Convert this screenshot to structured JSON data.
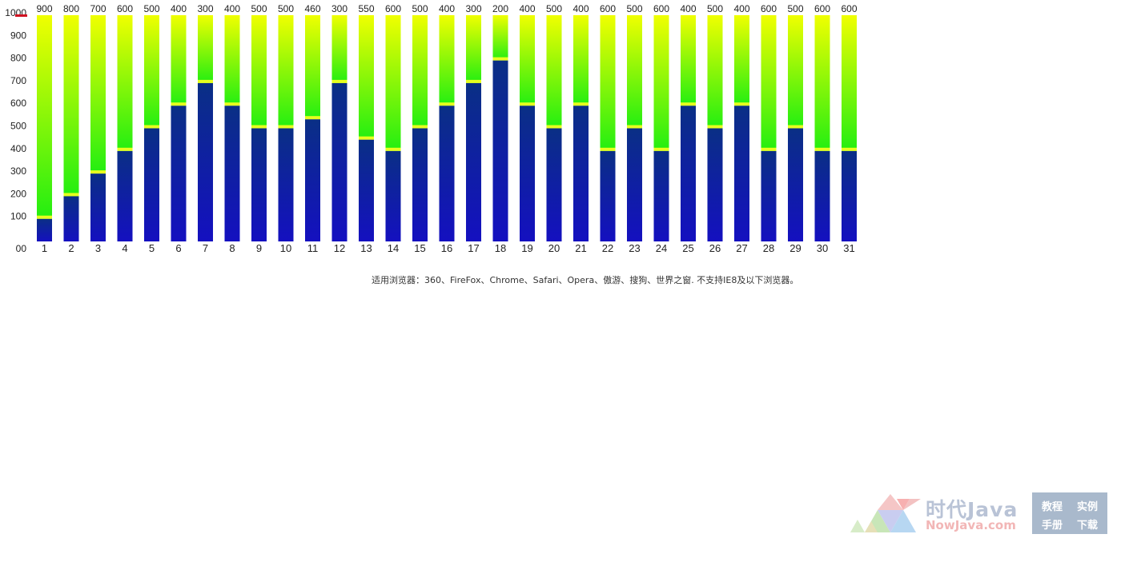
{
  "chart_data": {
    "type": "bar",
    "stacked": true,
    "categories": [
      "1",
      "2",
      "3",
      "4",
      "5",
      "6",
      "7",
      "8",
      "9",
      "10",
      "11",
      "12",
      "13",
      "14",
      "15",
      "16",
      "17",
      "18",
      "19",
      "20",
      "21",
      "22",
      "23",
      "24",
      "25",
      "26",
      "27",
      "28",
      "29",
      "30",
      "31"
    ],
    "values": [
      100,
      200,
      300,
      400,
      500,
      600,
      700,
      600,
      500,
      500,
      540,
      700,
      450,
      400,
      500,
      600,
      700,
      800,
      600,
      500,
      600,
      400,
      500,
      400,
      600,
      500,
      600,
      400,
      500,
      400,
      400
    ],
    "remainder_labels": [
      "900",
      "800",
      "700",
      "600",
      "500",
      "400",
      "300",
      "400",
      "500",
      "500",
      "460",
      "300",
      "550",
      "600",
      "500",
      "400",
      "300",
      "200",
      "400",
      "500",
      "400",
      "600",
      "500",
      "600",
      "400",
      "500",
      "400",
      "600",
      "500",
      "600",
      "600"
    ],
    "ylim": [
      0,
      1000
    ],
    "yticks": [
      "00",
      "100",
      "200",
      "300",
      "400",
      "500",
      "600",
      "700",
      "800",
      "900",
      "1000"
    ],
    "grid": false,
    "colors": {
      "value_top": "#0a2f85",
      "value_bottom": "#1410c0",
      "remainder_top": "#f0ff00",
      "remainder_bottom": "#22ee11",
      "cap": "#e6ff1e",
      "axis_marker": "#d01020"
    }
  },
  "footer": {
    "note": "适用浏览器：360、FireFox、Chrome、Safari、Opera、傲游、搜狗、世界之窗. 不支持IE8及以下浏览器。"
  },
  "watermark": {
    "title": "时代Java",
    "subtitle": "NowJava.com",
    "box": [
      "教程",
      "实例",
      "手册",
      "下载"
    ]
  }
}
